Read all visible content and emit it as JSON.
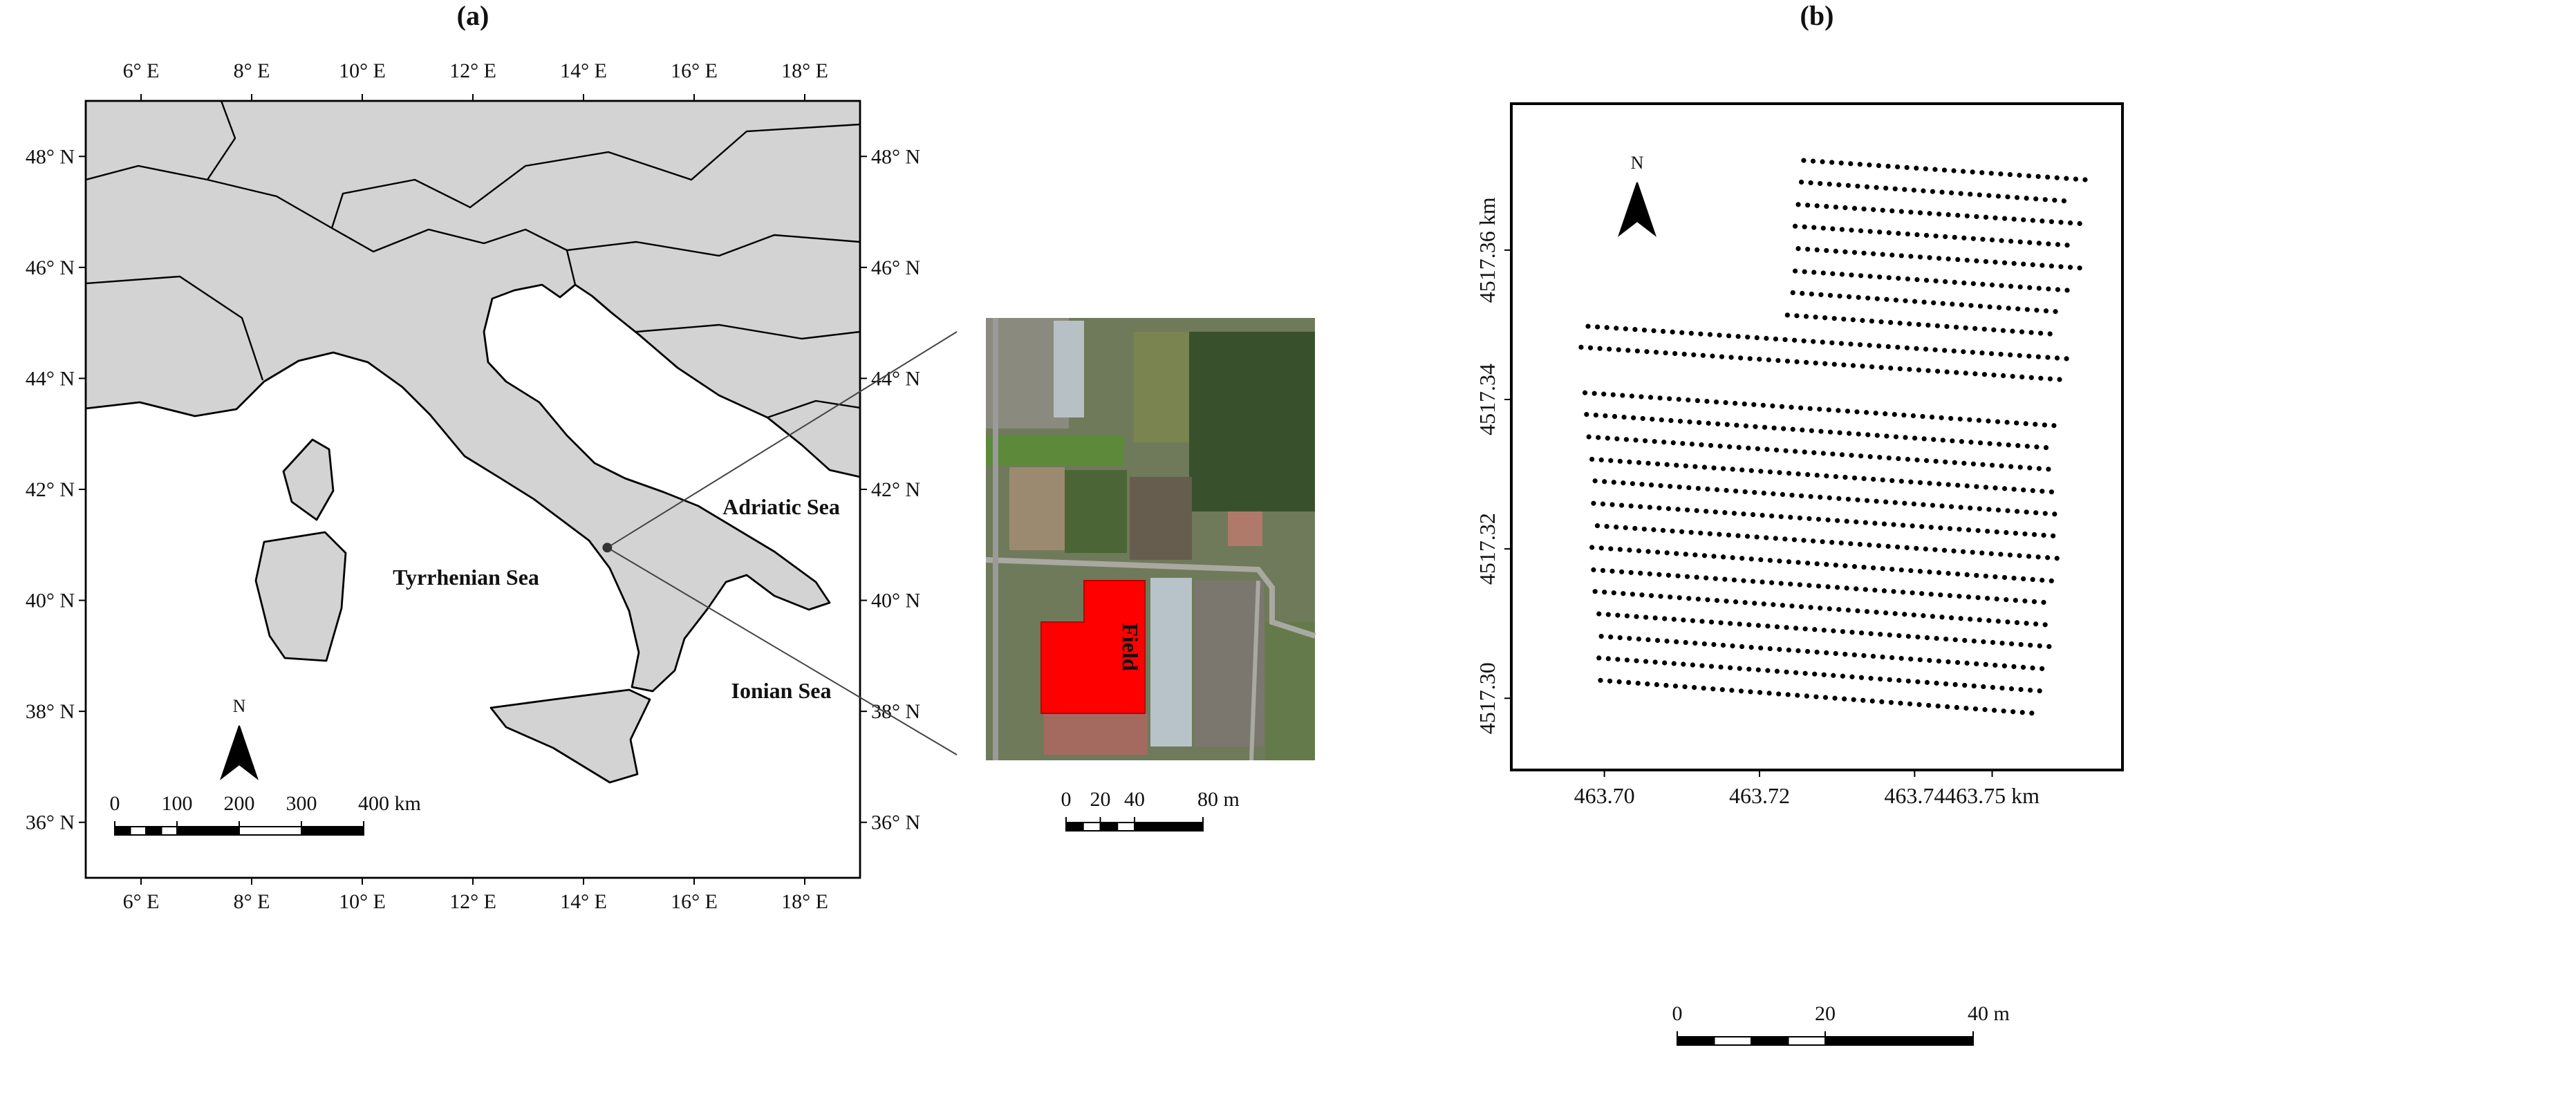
{
  "chart_data": [
    {
      "type": "map",
      "title": "(a)",
      "xlim": [
        5,
        19
      ],
      "ylim": [
        35,
        49
      ],
      "xticks": [
        {
          "value": 6,
          "label": "6° E"
        },
        {
          "value": 8,
          "label": "8° E"
        },
        {
          "value": 10,
          "label": "10° E"
        },
        {
          "value": 12,
          "label": "12° E"
        },
        {
          "value": 14,
          "label": "14° E"
        },
        {
          "value": 16,
          "label": "16° E"
        },
        {
          "value": 18,
          "label": "18° E"
        }
      ],
      "yticks": [
        {
          "value": 36,
          "label": "36° N"
        },
        {
          "value": 38,
          "label": "38° N"
        },
        {
          "value": 40,
          "label": "40° N"
        },
        {
          "value": 42,
          "label": "42° N"
        },
        {
          "value": 44,
          "label": "44° N"
        },
        {
          "value": 46,
          "label": "46° N"
        },
        {
          "value": 48,
          "label": "48° N"
        }
      ],
      "annotations": [
        "Adriatic Sea",
        "Tyrrhenian Sea",
        "Ionian Sea"
      ],
      "north": "N",
      "site": {
        "lon": 14.43,
        "lat": 40.95
      },
      "scale_bar": {
        "ticks": [
          0,
          100,
          200,
          300,
          {
            "value": 400,
            "label": "400 km"
          }
        ]
      },
      "inset": {
        "label": "Field",
        "scale_bar": {
          "ticks": [
            0,
            20,
            40,
            {
              "value": 80,
              "label": "80 m"
            }
          ]
        }
      }
    },
    {
      "type": "scatter",
      "title": "(b)",
      "xlim": [
        463.688,
        463.7668
      ],
      "ylim": [
        4517.2904,
        4517.3796
      ],
      "xticks": [
        {
          "value": 463.7,
          "label": "463.70"
        },
        {
          "value": 463.72,
          "label": "463.72"
        },
        {
          "value": 463.74,
          "label": "463.74"
        },
        {
          "value": 463.75,
          "label": "463.75 km"
        }
      ],
      "yticks": [
        {
          "value": 4517.3,
          "label": "4517.30"
        },
        {
          "value": 4517.32,
          "label": "4517.32"
        },
        {
          "value": 4517.34,
          "label": "4517.34"
        },
        {
          "value": 4517.36,
          "label": "4517.36 km"
        }
      ],
      "north": "N",
      "scale_bar": {
        "ticks": [
          0,
          20,
          {
            "value": 40,
            "label": "40 m"
          }
        ]
      },
      "rows": [
        {
          "x": [
            463.7257,
            463.7623
          ],
          "y": [
            4517.372,
            4517.3694
          ]
        },
        {
          "x": [
            463.7254,
            463.7604
          ],
          "y": [
            4517.3691,
            4517.3665
          ]
        },
        {
          "x": [
            463.725,
            463.762
          ],
          "y": [
            4517.3661,
            4517.3635
          ]
        },
        {
          "x": [
            463.7246,
            463.7605
          ],
          "y": [
            4517.3632,
            4517.3606
          ]
        },
        {
          "x": [
            463.725,
            463.7614
          ],
          "y": [
            4517.3602,
            4517.3576
          ]
        },
        {
          "x": [
            463.7246,
            463.76
          ],
          "y": [
            4517.3572,
            4517.3546
          ]
        },
        {
          "x": [
            463.7243,
            463.7591
          ],
          "y": [
            4517.3543,
            4517.3517
          ]
        },
        {
          "x": [
            463.7236,
            463.7586
          ],
          "y": [
            4517.3513,
            4517.3487
          ]
        },
        {
          "x": [
            463.6979,
            463.7605
          ],
          "y": [
            4517.3498,
            4517.3454
          ]
        },
        {
          "x": [
            463.697,
            463.7598
          ],
          "y": [
            4517.347,
            4517.3426
          ]
        },
        {
          "x": [
            463.6975,
            463.758
          ],
          "y": [
            4517.3409,
            4517.3365
          ]
        },
        {
          "x": [
            463.6977,
            463.7577
          ],
          "y": [
            4517.338,
            4517.3335
          ]
        },
        {
          "x": [
            463.698,
            463.7582
          ],
          "y": [
            4517.335,
            4517.3306
          ]
        },
        {
          "x": [
            463.6984,
            463.758
          ],
          "y": [
            4517.332,
            4517.3276
          ]
        },
        {
          "x": [
            463.6988,
            463.7588
          ],
          "y": [
            4517.3291,
            4517.3246
          ]
        },
        {
          "x": [
            463.6986,
            463.7584
          ],
          "y": [
            4517.3261,
            4517.3217
          ]
        },
        {
          "x": [
            463.6991,
            463.7589
          ],
          "y": [
            4517.3231,
            4517.3187
          ]
        },
        {
          "x": [
            463.6984,
            463.7579
          ],
          "y": [
            4517.3202,
            4517.3157
          ]
        },
        {
          "x": [
            463.6986,
            463.7572
          ],
          "y": [
            4517.3172,
            4517.3128
          ]
        },
        {
          "x": [
            463.6988,
            463.7575
          ],
          "y": [
            4517.3143,
            4517.3098
          ]
        },
        {
          "x": [
            463.6993,
            463.7577
          ],
          "y": [
            4517.3113,
            4517.3069
          ]
        },
        {
          "x": [
            463.6996,
            463.7573
          ],
          "y": [
            4517.3083,
            4517.3039
          ]
        },
        {
          "x": [
            463.6993,
            463.7573
          ],
          "y": [
            4517.3054,
            4517.3009
          ]
        },
        {
          "x": [
            463.6995,
            463.7552
          ],
          "y": [
            4517.3024,
            4517.298
          ]
        }
      ]
    }
  ]
}
